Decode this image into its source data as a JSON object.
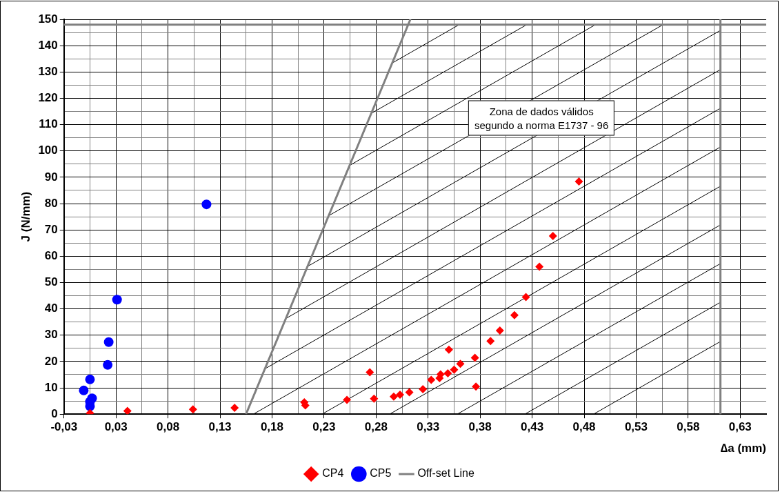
{
  "chart_data": {
    "type": "scatter",
    "xlabel": "∆a (mm)",
    "ylabel": "J (N/mm)",
    "xlim": [
      -0.025,
      0.65
    ],
    "ylim": [
      0,
      150
    ],
    "xticks": [
      {
        "value": -0.025,
        "label": "-0,03"
      },
      {
        "value": 0,
        "label": null
      },
      {
        "value": 0.025,
        "label": "0,03"
      },
      {
        "value": 0.05,
        "label": null
      },
      {
        "value": 0.075,
        "label": "0,08"
      },
      {
        "value": 0.1,
        "label": null
      },
      {
        "value": 0.125,
        "label": "0,13"
      },
      {
        "value": 0.15,
        "label": null
      },
      {
        "value": 0.175,
        "label": "0,18"
      },
      {
        "value": 0.2,
        "label": null
      },
      {
        "value": 0.225,
        "label": "0,23"
      },
      {
        "value": 0.25,
        "label": null
      },
      {
        "value": 0.275,
        "label": "0,28"
      },
      {
        "value": 0.3,
        "label": null
      },
      {
        "value": 0.325,
        "label": "0,33"
      },
      {
        "value": 0.35,
        "label": null
      },
      {
        "value": 0.375,
        "label": "0,38"
      },
      {
        "value": 0.4,
        "label": null
      },
      {
        "value": 0.425,
        "label": "0,43"
      },
      {
        "value": 0.45,
        "label": null
      },
      {
        "value": 0.475,
        "label": "0,48"
      },
      {
        "value": 0.5,
        "label": null
      },
      {
        "value": 0.525,
        "label": "0,53"
      },
      {
        "value": 0.55,
        "label": null
      },
      {
        "value": 0.575,
        "label": "0,58"
      },
      {
        "value": 0.6,
        "label": null
      },
      {
        "value": 0.625,
        "label": "0,63"
      }
    ],
    "yticks": [
      0,
      {
        "value": 5,
        "label": null
      },
      10,
      {
        "value": 15,
        "label": null
      },
      20,
      {
        "value": 25,
        "label": null
      },
      30,
      {
        "value": 35,
        "label": null
      },
      40,
      {
        "value": 45,
        "label": null
      },
      50,
      {
        "value": 55,
        "label": null
      },
      60,
      {
        "value": 65,
        "label": null
      },
      70,
      {
        "value": 75,
        "label": null
      },
      80,
      {
        "value": 85,
        "label": null
      },
      90,
      {
        "value": 95,
        "label": null
      },
      100,
      {
        "value": 105,
        "label": null
      },
      110,
      {
        "value": 115,
        "label": null
      },
      120,
      {
        "value": 125,
        "label": null
      },
      130,
      {
        "value": 135,
        "label": null
      },
      140,
      {
        "value": 145,
        "label": null
      },
      150
    ],
    "grid": true,
    "legend": "bottom",
    "series": [
      {
        "name": "CP4",
        "color": "#ff0000",
        "marker": "diamond",
        "x": [
          0.0,
          0.036,
          0.099,
          0.139,
          0.206,
          0.207,
          0.247,
          0.269,
          0.273,
          0.292,
          0.298,
          0.307,
          0.32,
          0.328,
          0.336,
          0.337,
          0.344,
          0.345,
          0.35,
          0.356,
          0.37,
          0.371,
          0.385,
          0.394,
          0.408,
          0.419,
          0.432,
          0.445,
          0.47
        ],
        "values": [
          0.4,
          1.2,
          1.8,
          2.4,
          4.5,
          3.3,
          5.4,
          15.9,
          5.9,
          6.7,
          7.4,
          8.3,
          9.5,
          13.0,
          13.7,
          15.1,
          15.5,
          24.5,
          16.9,
          19.1,
          21.4,
          10.5,
          27.8,
          31.8,
          37.6,
          44.5,
          56.0,
          67.7,
          88.4
        ]
      },
      {
        "name": "CP5",
        "color": "#0000ff",
        "marker": "circle",
        "x": [
          -0.006,
          0.0,
          0.002,
          0.0,
          0.0,
          0.017,
          0.018,
          0.026,
          0.112
        ],
        "values": [
          9.0,
          13.2,
          6.0,
          4.7,
          3.0,
          18.7,
          27.4,
          43.5,
          79.7
        ]
      },
      {
        "name": "Off-set Line",
        "type": "line",
        "color": "#808080",
        "marker": "none",
        "x": [
          0.15,
          0.308
        ],
        "values": [
          0,
          150
        ]
      },
      {
        "type": "line",
        "color": "#000000",
        "marker": "none",
        "x": [
          0.291,
          0.355
        ],
        "values": [
          133.5,
          148
        ]
      },
      {
        "type": "line",
        "color": "#000000",
        "marker": "none",
        "x": [
          0.27,
          0.42
        ],
        "values": [
          114.2,
          148
        ]
      },
      {
        "type": "line",
        "color": "#000000",
        "marker": "none",
        "x": [
          0.25,
          0.486
        ],
        "values": [
          94.6,
          148
        ]
      },
      {
        "type": "line",
        "color": "#000000",
        "marker": "none",
        "x": [
          0.229,
          0.551
        ],
        "values": [
          75.3,
          148
        ]
      },
      {
        "type": "line",
        "color": "#000000",
        "marker": "none",
        "x": [
          0.209,
          0.606
        ],
        "values": [
          56.1,
          145.8
        ]
      },
      {
        "type": "line",
        "color": "#000000",
        "marker": "none",
        "x": [
          0.189,
          0.606
        ],
        "values": [
          36.5,
          130.9
        ]
      },
      {
        "type": "line",
        "color": "#000000",
        "marker": "none",
        "x": [
          0.168,
          0.606
        ],
        "values": [
          17.2,
          116.2
        ]
      },
      {
        "type": "line",
        "color": "#000000",
        "marker": "none",
        "x": [
          0.157,
          0.606
        ],
        "values": [
          0,
          101.5
        ]
      },
      {
        "type": "line",
        "color": "#000000",
        "marker": "none",
        "x": [
          0.223,
          0.606
        ],
        "values": [
          0,
          86.6
        ]
      },
      {
        "type": "line",
        "color": "#000000",
        "marker": "none",
        "x": [
          0.288,
          0.606
        ],
        "values": [
          0,
          71.9
        ]
      },
      {
        "type": "line",
        "color": "#000000",
        "marker": "none",
        "x": [
          0.353,
          0.606
        ],
        "values": [
          0,
          57.2
        ]
      },
      {
        "type": "line",
        "color": "#000000",
        "marker": "none",
        "x": [
          0.418,
          0.606
        ],
        "values": [
          0,
          42.5
        ]
      },
      {
        "type": "line",
        "color": "#000000",
        "marker": "none",
        "x": [
          0.484,
          0.606
        ],
        "values": [
          0,
          27.6
        ]
      }
    ],
    "ref_lines": [
      {
        "axis": "y",
        "value": 148,
        "color": "#808080"
      },
      {
        "axis": "x",
        "value": 0.606,
        "color": "#808080"
      }
    ],
    "annotations": [
      "Zona de dados válidos\nsegundo a norma E1737 - 96"
    ]
  }
}
